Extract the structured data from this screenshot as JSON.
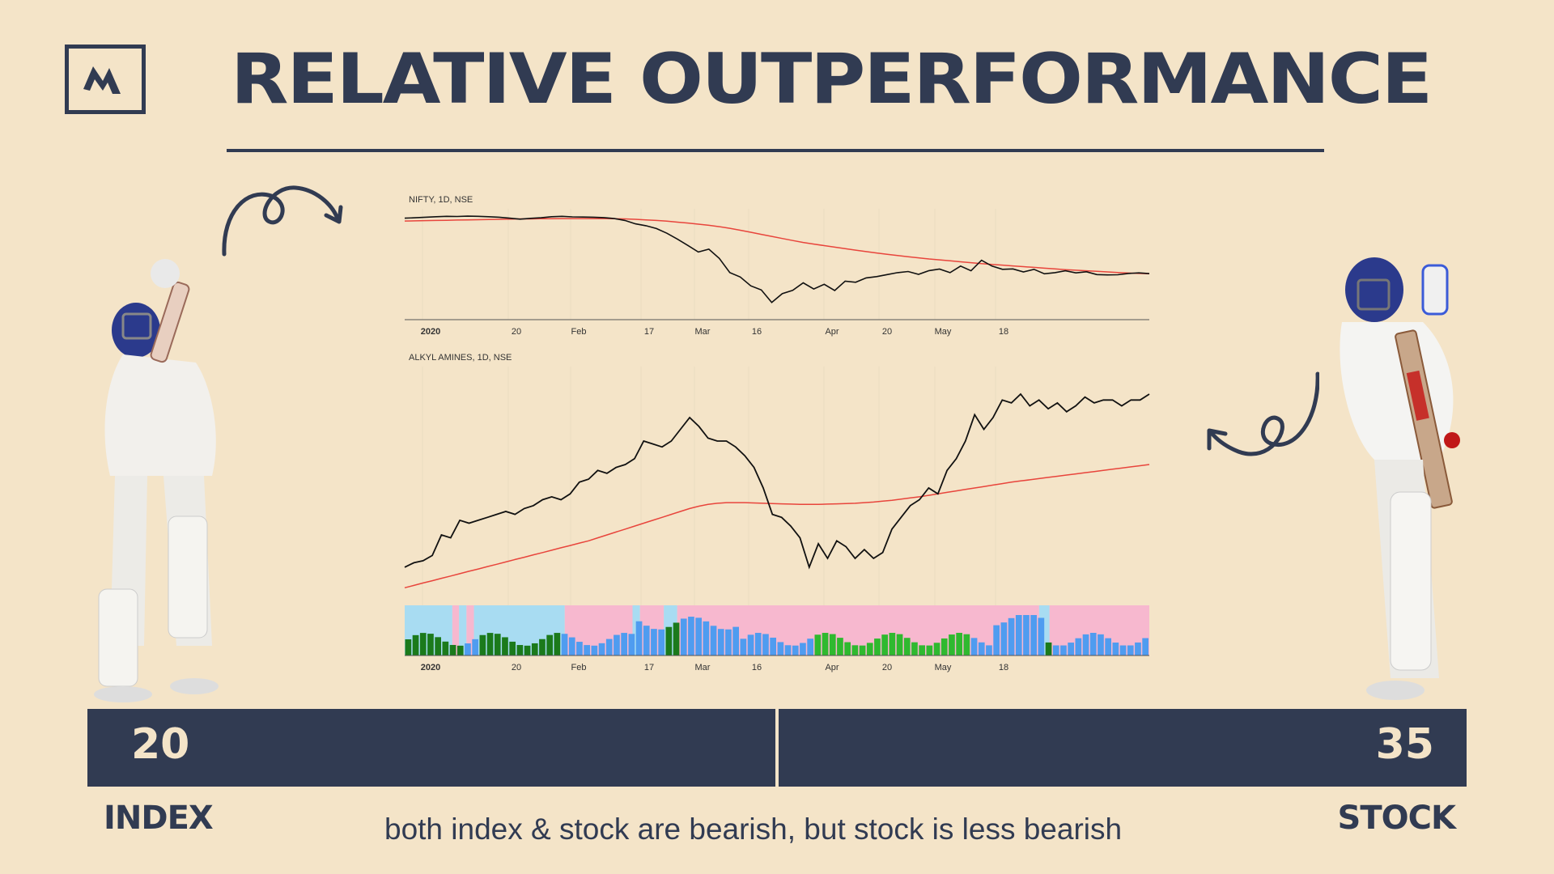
{
  "header": {
    "title": "RELATIVE OUTPERFORMANCE"
  },
  "logo": {
    "icon": "monogram-logo-icon"
  },
  "colors": {
    "navy": "#313b52",
    "background": "#f4e4c8",
    "price": "#111111",
    "ma": "#e8453c",
    "volume_blue": "#4f9cf0",
    "volume_green": "#2fb92f",
    "volume_darkgreen": "#1b7a1b",
    "bg_pink": "#f7b8cf",
    "bg_cyan": "#a8dcf2"
  },
  "chart_data": [
    {
      "type": "line",
      "title": "NIFTY, 1D, NSE",
      "x_ticks": [
        "2020",
        "20",
        "Feb",
        "17",
        "Mar",
        "16",
        "Apr",
        "20",
        "May",
        "18"
      ],
      "series": [
        {
          "values": [
            12100,
            12120,
            12150,
            12180,
            12200,
            12190,
            12210,
            12200,
            12180,
            12150,
            12100,
            12050,
            12090,
            12120,
            12180,
            12200,
            12170,
            12160,
            12150,
            12130,
            12080,
            11980,
            11800,
            11700,
            11550,
            11300,
            10990,
            10650,
            10300,
            10450,
            9960,
            9200,
            8970,
            8500,
            8280,
            7610,
            8080,
            8260,
            8660,
            8330,
            8580,
            8250,
            8750,
            8690,
            8920,
            8990,
            9100,
            9200,
            9260,
            9110,
            9310,
            9390,
            9200,
            9550,
            9300,
            9860,
            9550,
            9380,
            9400,
            9240,
            9380,
            9140,
            9200,
            9300,
            9190,
            9250,
            9100,
            9080,
            9090,
            9160,
            9190,
            9150
          ]
        },
        {
          "values": [
            11950,
            11960,
            11970,
            11980,
            11990,
            12000,
            12010,
            12020,
            12030,
            12040,
            12050,
            12060,
            12060,
            12070,
            12070,
            12080,
            12080,
            12080,
            12080,
            12080,
            12070,
            12060,
            12040,
            12010,
            11980,
            11940,
            11890,
            11840,
            11780,
            11720,
            11650,
            11560,
            11460,
            11350,
            11240,
            11130,
            11020,
            10910,
            10810,
            10720,
            10640,
            10560,
            10480,
            10400,
            10320,
            10250,
            10180,
            10110,
            10050,
            9990,
            9930,
            9880,
            9830,
            9780,
            9730,
            9680,
            9640,
            9600,
            9560,
            9520,
            9480,
            9440,
            9400,
            9360,
            9330,
            9300,
            9270,
            9240,
            9210,
            9180,
            9160,
            9140
          ]
        }
      ]
    },
    {
      "type": "line",
      "title": "ALKYL AMINES, 1D, NSE",
      "x_ticks": [
        "2020",
        "20",
        "Feb",
        "17",
        "Mar",
        "16",
        "Apr",
        "20",
        "May",
        "18"
      ],
      "series": [
        {
          "values": [
            830,
            845,
            852,
            870,
            940,
            930,
            990,
            980,
            990,
            1000,
            1010,
            1020,
            1010,
            1030,
            1040,
            1060,
            1070,
            1060,
            1080,
            1120,
            1130,
            1160,
            1150,
            1170,
            1180,
            1200,
            1260,
            1250,
            1240,
            1260,
            1300,
            1340,
            1310,
            1270,
            1260,
            1260,
            1240,
            1210,
            1170,
            1100,
            1010,
            1000,
            970,
            930,
            830,
            910,
            860,
            920,
            900,
            860,
            890,
            860,
            880,
            960,
            1000,
            1040,
            1060,
            1100,
            1080,
            1160,
            1200,
            1260,
            1350,
            1300,
            1340,
            1400,
            1390,
            1420,
            1380,
            1400,
            1370,
            1390,
            1360,
            1380,
            1410,
            1390,
            1400,
            1400,
            1380,
            1400,
            1400,
            1420
          ]
        },
        {
          "values": [
            760,
            768,
            776,
            784,
            792,
            800,
            808,
            816,
            824,
            832,
            840,
            848,
            856,
            864,
            872,
            880,
            888,
            896,
            904,
            912,
            920,
            930,
            940,
            950,
            960,
            970,
            980,
            990,
            1000,
            1010,
            1020,
            1030,
            1038,
            1044,
            1048,
            1050,
            1050,
            1050,
            1049,
            1048,
            1047,
            1046,
            1045,
            1044,
            1044,
            1044,
            1045,
            1046,
            1047,
            1048,
            1050,
            1052,
            1055,
            1058,
            1062,
            1066,
            1070,
            1075,
            1080,
            1085,
            1090,
            1095,
            1100,
            1105,
            1110,
            1115,
            1120,
            1124,
            1128,
            1132,
            1136,
            1140,
            1144,
            1148,
            1152,
            1156,
            1160,
            1164,
            1168,
            1172,
            1176,
            1180
          ]
        }
      ]
    }
  ],
  "scoreboard": {
    "left_score": "20",
    "right_score": "35",
    "left_label": "INDEX",
    "right_label": "STOCK"
  },
  "caption": "both index & stock are bearish, but stock is less bearish",
  "images": {
    "left_player": "cricketer-batting-left-illustration",
    "right_player": "cricketer-batting-right-illustration"
  }
}
